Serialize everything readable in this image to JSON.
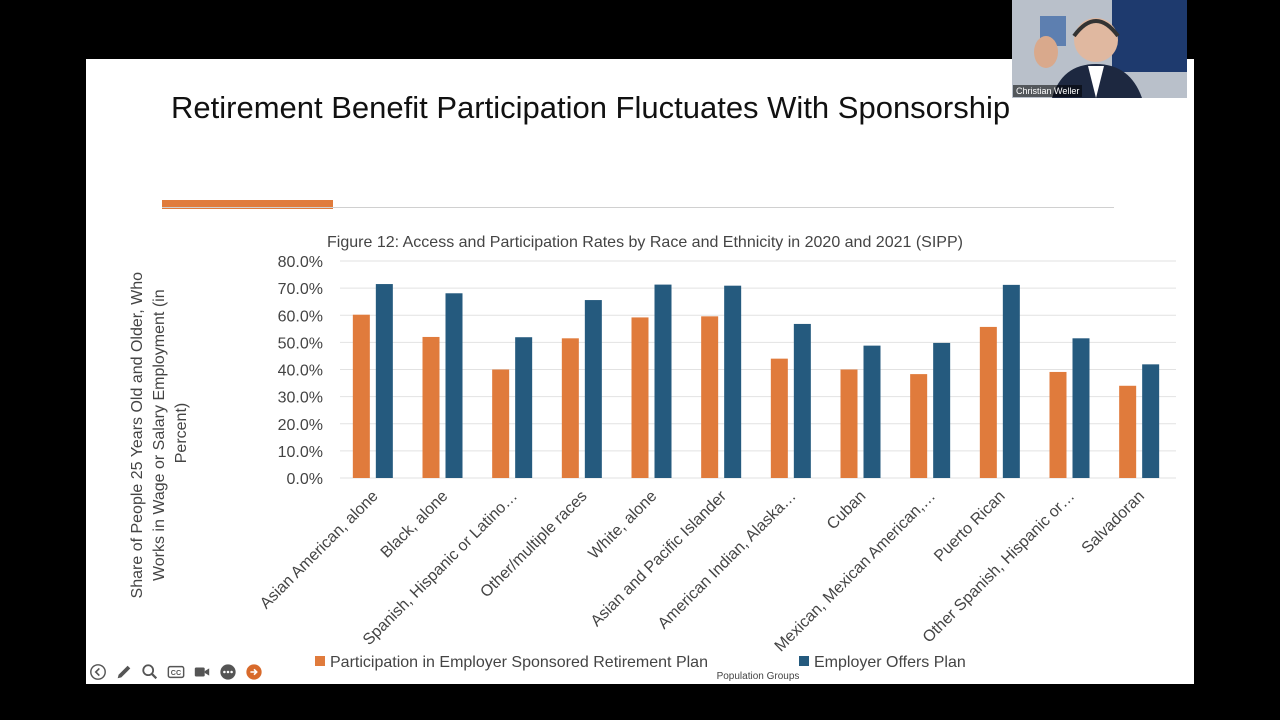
{
  "slide": {
    "title": "Retirement Benefit Participation Fluctuates With Sponsorship"
  },
  "colors": {
    "participation": "#e07b3c",
    "offers": "#255a7e",
    "accent": "#e07b3c",
    "grid": "#e2e2e2"
  },
  "chart_data": {
    "type": "bar",
    "title": "Figure 12: Access and Participation Rates by Race and Ethnicity in 2020 and 2021 (SIPP)",
    "xlabel": "Population Groups",
    "ylabel": "Share of People 25 Years Old and Older, Who Works in Wage or Salary Employment (in Percent)",
    "ylabel_lines": [
      "Share of People 25 Years Old and Older, Who",
      "Works in Wage or Salary Employment (in",
      "Percent)"
    ],
    "ylim": [
      0,
      80
    ],
    "yticks": [
      "80.0%",
      "70.0%",
      "60.0%",
      "50.0%",
      "40.0%",
      "30.0%",
      "20.0%",
      "10.0%",
      "0.0%"
    ],
    "ytick_values": [
      80,
      70,
      60,
      50,
      40,
      30,
      20,
      10,
      0
    ],
    "grid": true,
    "legend_position": "bottom",
    "categories": [
      "Asian American, alone",
      "Black, alone",
      "Spanish, Hispanic or Latino…",
      "Other/multiple races",
      "White, alone",
      "Asian and Pacific Islander",
      "American Indian, Alaska…",
      "Cuban",
      "Mexican, Mexican American,…",
      "Puerto Rican",
      "Other Spanish, Hispanic or…",
      "Salvadoran"
    ],
    "series": [
      {
        "name": "Participation in Employer Sponsored Retirement Plan",
        "color": "#e07b3c",
        "values": [
          60.2,
          52.0,
          40.0,
          51.5,
          59.2,
          59.6,
          44.0,
          40.0,
          38.3,
          55.7,
          39.1,
          34.0
        ]
      },
      {
        "name": "Employer Offers Plan",
        "color": "#255a7e",
        "values": [
          71.5,
          68.1,
          51.9,
          65.6,
          71.3,
          70.9,
          56.8,
          48.8,
          49.8,
          71.2,
          51.5,
          41.9
        ]
      }
    ]
  },
  "toolbar": {
    "icons": [
      "back-icon",
      "pen-icon",
      "zoom-icon",
      "captions-icon",
      "camera-icon",
      "more-icon",
      "next-icon"
    ],
    "captions_label": "CC"
  },
  "webcam": {
    "name": "Christian Weller"
  }
}
